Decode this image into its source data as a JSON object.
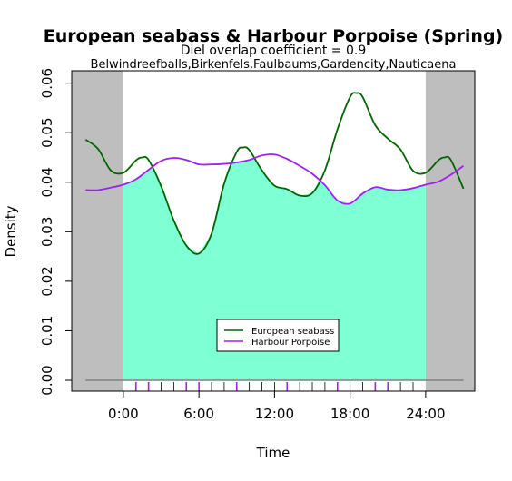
{
  "chart_data": {
    "type": "line",
    "title": "European seabass & Harbour Porpoise (Spring)",
    "subtitle": "Diel overlap coefficient =  0.9",
    "sites": "Belwindreefballs,Birkenfels,Faulbaums,Gardencity,Nauticaena",
    "xlabel": "Time",
    "ylabel": "Density",
    "xlim": [
      -4.1,
      27.9
    ],
    "ylim": [
      -0.0022,
      0.0625
    ],
    "x_ticks": [
      {
        "value": 0,
        "label": "0:00"
      },
      {
        "value": 6,
        "label": "6:00"
      },
      {
        "value": 12,
        "label": "12:00"
      },
      {
        "value": 18,
        "label": "18:00"
      },
      {
        "value": 24,
        "label": "24:00"
      }
    ],
    "y_ticks": [
      {
        "value": 0.0,
        "label": "0.00"
      },
      {
        "value": 0.01,
        "label": "0.01"
      },
      {
        "value": 0.02,
        "label": "0.02"
      },
      {
        "value": 0.03,
        "label": "0.03"
      },
      {
        "value": 0.04,
        "label": "0.04"
      },
      {
        "value": 0.05,
        "label": "0.05"
      },
      {
        "value": 0.06,
        "label": "0.06"
      }
    ],
    "night_shading": [
      [
        -4.1,
        0
      ],
      [
        24,
        27.9
      ]
    ],
    "overlap_fill_color": "#7fffd4",
    "night_color": "#bebebe",
    "series": [
      {
        "name": "European seabass",
        "color": "#006400",
        "x": [
          -3,
          -2,
          -1,
          0,
          1,
          1.5,
          2,
          3,
          4,
          5,
          6,
          7,
          8,
          9,
          9.5,
          10,
          11,
          12,
          13,
          14,
          15,
          16,
          17,
          18,
          18.5,
          19,
          20,
          21,
          22,
          23,
          24,
          25,
          25.5,
          26,
          27
        ],
        "y": [
          0.0486,
          0.0467,
          0.0424,
          0.0419,
          0.0444,
          0.045,
          0.0445,
          0.0392,
          0.0323,
          0.0272,
          0.0256,
          0.0296,
          0.0397,
          0.0461,
          0.047,
          0.0465,
          0.0424,
          0.0393,
          0.0386,
          0.0373,
          0.0378,
          0.0424,
          0.0507,
          0.0572,
          0.058,
          0.0572,
          0.0515,
          0.0488,
          0.0466,
          0.0423,
          0.0419,
          0.0444,
          0.045,
          0.0445,
          0.0387
        ]
      },
      {
        "name": "Harbour Porpoise",
        "color": "#a020f0",
        "x": [
          -3,
          -2,
          -1,
          0,
          1,
          2,
          3,
          4,
          5,
          6,
          7,
          8,
          9,
          10,
          11,
          12,
          13,
          14,
          15,
          16,
          17,
          18,
          19,
          20,
          21,
          22,
          23,
          24,
          25,
          26,
          27
        ],
        "y": [
          0.0384,
          0.0384,
          0.0389,
          0.0395,
          0.0406,
          0.0425,
          0.0443,
          0.0449,
          0.0445,
          0.0436,
          0.0436,
          0.0437,
          0.044,
          0.0445,
          0.0454,
          0.0456,
          0.0447,
          0.0433,
          0.0417,
          0.0394,
          0.0363,
          0.0357,
          0.0377,
          0.039,
          0.0385,
          0.0384,
          0.0388,
          0.0395,
          0.0401,
          0.0415,
          0.0433
        ]
      }
    ],
    "rug_x": [
      1,
      2,
      3,
      4,
      5,
      6,
      7,
      8,
      9,
      10,
      11,
      12,
      13,
      14,
      15,
      16,
      17,
      18,
      19,
      20,
      21,
      22,
      23
    ],
    "rug_color_x": [
      1.0,
      2.0,
      5.0,
      6.0,
      9.0,
      13.0,
      17.0,
      20.0,
      21.0
    ],
    "legend": {
      "placement": "bottom-center",
      "entries": [
        "European seabass",
        "Harbour Porpoise"
      ]
    }
  }
}
